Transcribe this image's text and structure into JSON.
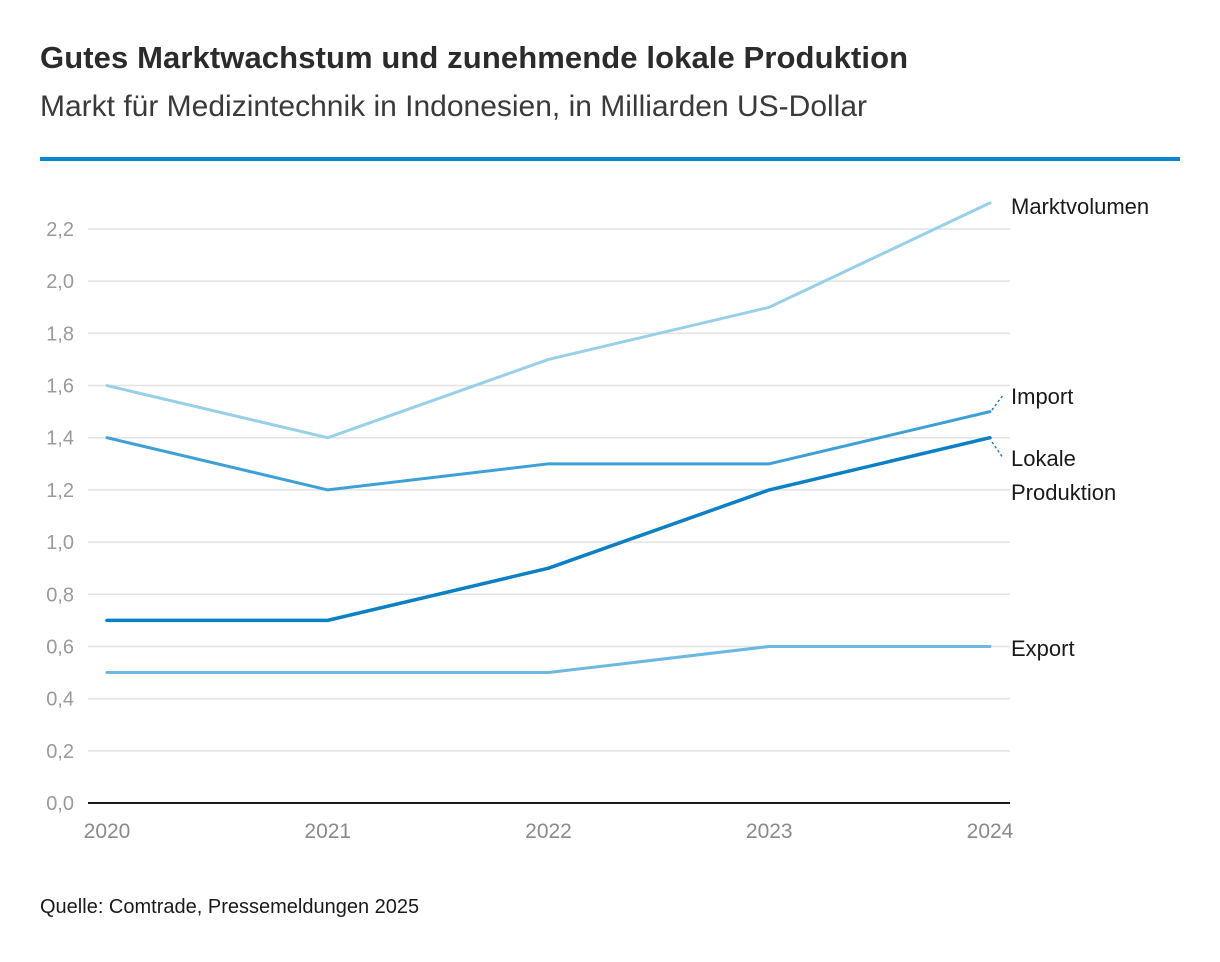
{
  "title": "Gutes Marktwachstum und zunehmende lokale Produktion",
  "subtitle": "Markt für Medizintechnik in Indonesien, in Milliarden US-Dollar",
  "source": "Quelle: Comtrade, Pressemeldungen 2025",
  "chart_data": {
    "type": "line",
    "title": "Gutes Marktwachstum und zunehmende lokale Produktion",
    "subtitle": "Markt für Medizintechnik in Indonesien, in Milliarden US-Dollar",
    "xlabel": "",
    "ylabel": "",
    "x": [
      "2020",
      "2021",
      "2022",
      "2023",
      "2024"
    ],
    "ylim": [
      0,
      2.3
    ],
    "yticks": [
      "0,0",
      "0,2",
      "0,4",
      "0,6",
      "0,8",
      "1,0",
      "1,2",
      "1,4",
      "1,6",
      "1,8",
      "2,0",
      "2,2"
    ],
    "ytick_values": [
      0,
      0.2,
      0.4,
      0.6,
      0.8,
      1.0,
      1.2,
      1.4,
      1.6,
      1.8,
      2.0,
      2.2
    ],
    "grid": true,
    "legend": "end-of-line labels, right",
    "series": [
      {
        "name": "Marktvolumen",
        "label_lines": [
          "Marktvolumen"
        ],
        "values": [
          1.6,
          1.4,
          1.7,
          1.9,
          2.3
        ],
        "color": "#97d0e8"
      },
      {
        "name": "Import",
        "label_lines": [
          "Import"
        ],
        "values": [
          1.4,
          1.2,
          1.3,
          1.3,
          1.5
        ],
        "color": "#3da0d6"
      },
      {
        "name": "Lokale Produktion",
        "label_lines": [
          "Lokale",
          "Produktion"
        ],
        "values": [
          0.7,
          0.7,
          0.9,
          1.2,
          1.4
        ],
        "color": "#0a80c6"
      },
      {
        "name": "Export",
        "label_lines": [
          "Export"
        ],
        "values": [
          0.5,
          0.5,
          0.5,
          0.6,
          0.6
        ],
        "color": "#6bb9e0"
      }
    ]
  }
}
